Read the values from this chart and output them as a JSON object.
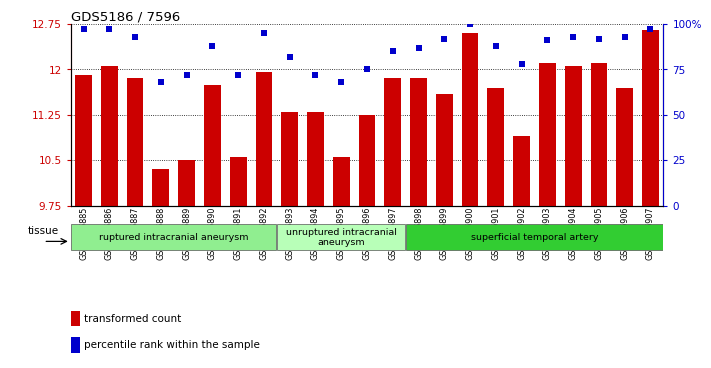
{
  "title": "GDS5186 / 7596",
  "samples": [
    "GSM1306885",
    "GSM1306886",
    "GSM1306887",
    "GSM1306888",
    "GSM1306889",
    "GSM1306890",
    "GSM1306891",
    "GSM1306892",
    "GSM1306893",
    "GSM1306894",
    "GSM1306895",
    "GSM1306896",
    "GSM1306897",
    "GSM1306898",
    "GSM1306899",
    "GSM1306900",
    "GSM1306901",
    "GSM1306902",
    "GSM1306903",
    "GSM1306904",
    "GSM1306905",
    "GSM1306906",
    "GSM1306907"
  ],
  "bar_values": [
    11.9,
    12.05,
    11.85,
    10.35,
    10.5,
    11.75,
    10.55,
    11.95,
    11.3,
    11.3,
    10.55,
    11.25,
    11.85,
    11.85,
    11.6,
    12.6,
    11.7,
    10.9,
    12.1,
    12.05,
    12.1,
    11.7,
    12.65
  ],
  "percentile_values": [
    97,
    97,
    93,
    68,
    72,
    88,
    72,
    95,
    82,
    72,
    68,
    75,
    85,
    87,
    92,
    100,
    88,
    78,
    91,
    93,
    92,
    93,
    97
  ],
  "ylim_left": [
    9.75,
    12.75
  ],
  "ylim_right": [
    0,
    100
  ],
  "yticks_left": [
    9.75,
    10.5,
    11.25,
    12.0,
    12.75
  ],
  "yticks_right": [
    0,
    25,
    50,
    75,
    100
  ],
  "ytick_labels_left": [
    "9.75",
    "10.5",
    "11.25",
    "12",
    "12.75"
  ],
  "ytick_labels_right": [
    "0",
    "25",
    "50",
    "75",
    "100%"
  ],
  "bar_color": "#cc0000",
  "dot_color": "#0000cc",
  "plot_bg_color": "#ffffff",
  "groups": [
    {
      "label": "ruptured intracranial aneurysm",
      "start": 0,
      "end": 8,
      "color": "#90ee90"
    },
    {
      "label": "unruptured intracranial\naneurysm",
      "start": 8,
      "end": 13,
      "color": "#b8ffb8"
    },
    {
      "label": "superficial temporal artery",
      "start": 13,
      "end": 23,
      "color": "#32cd32"
    }
  ],
  "tissue_label": "tissue",
  "legend_bar_label": "transformed count",
  "legend_dot_label": "percentile rank within the sample",
  "dotted_grid_lines": [
    9.75,
    10.5,
    11.25,
    12.0,
    12.75
  ],
  "tick_bg_color": "#d3d3d3"
}
